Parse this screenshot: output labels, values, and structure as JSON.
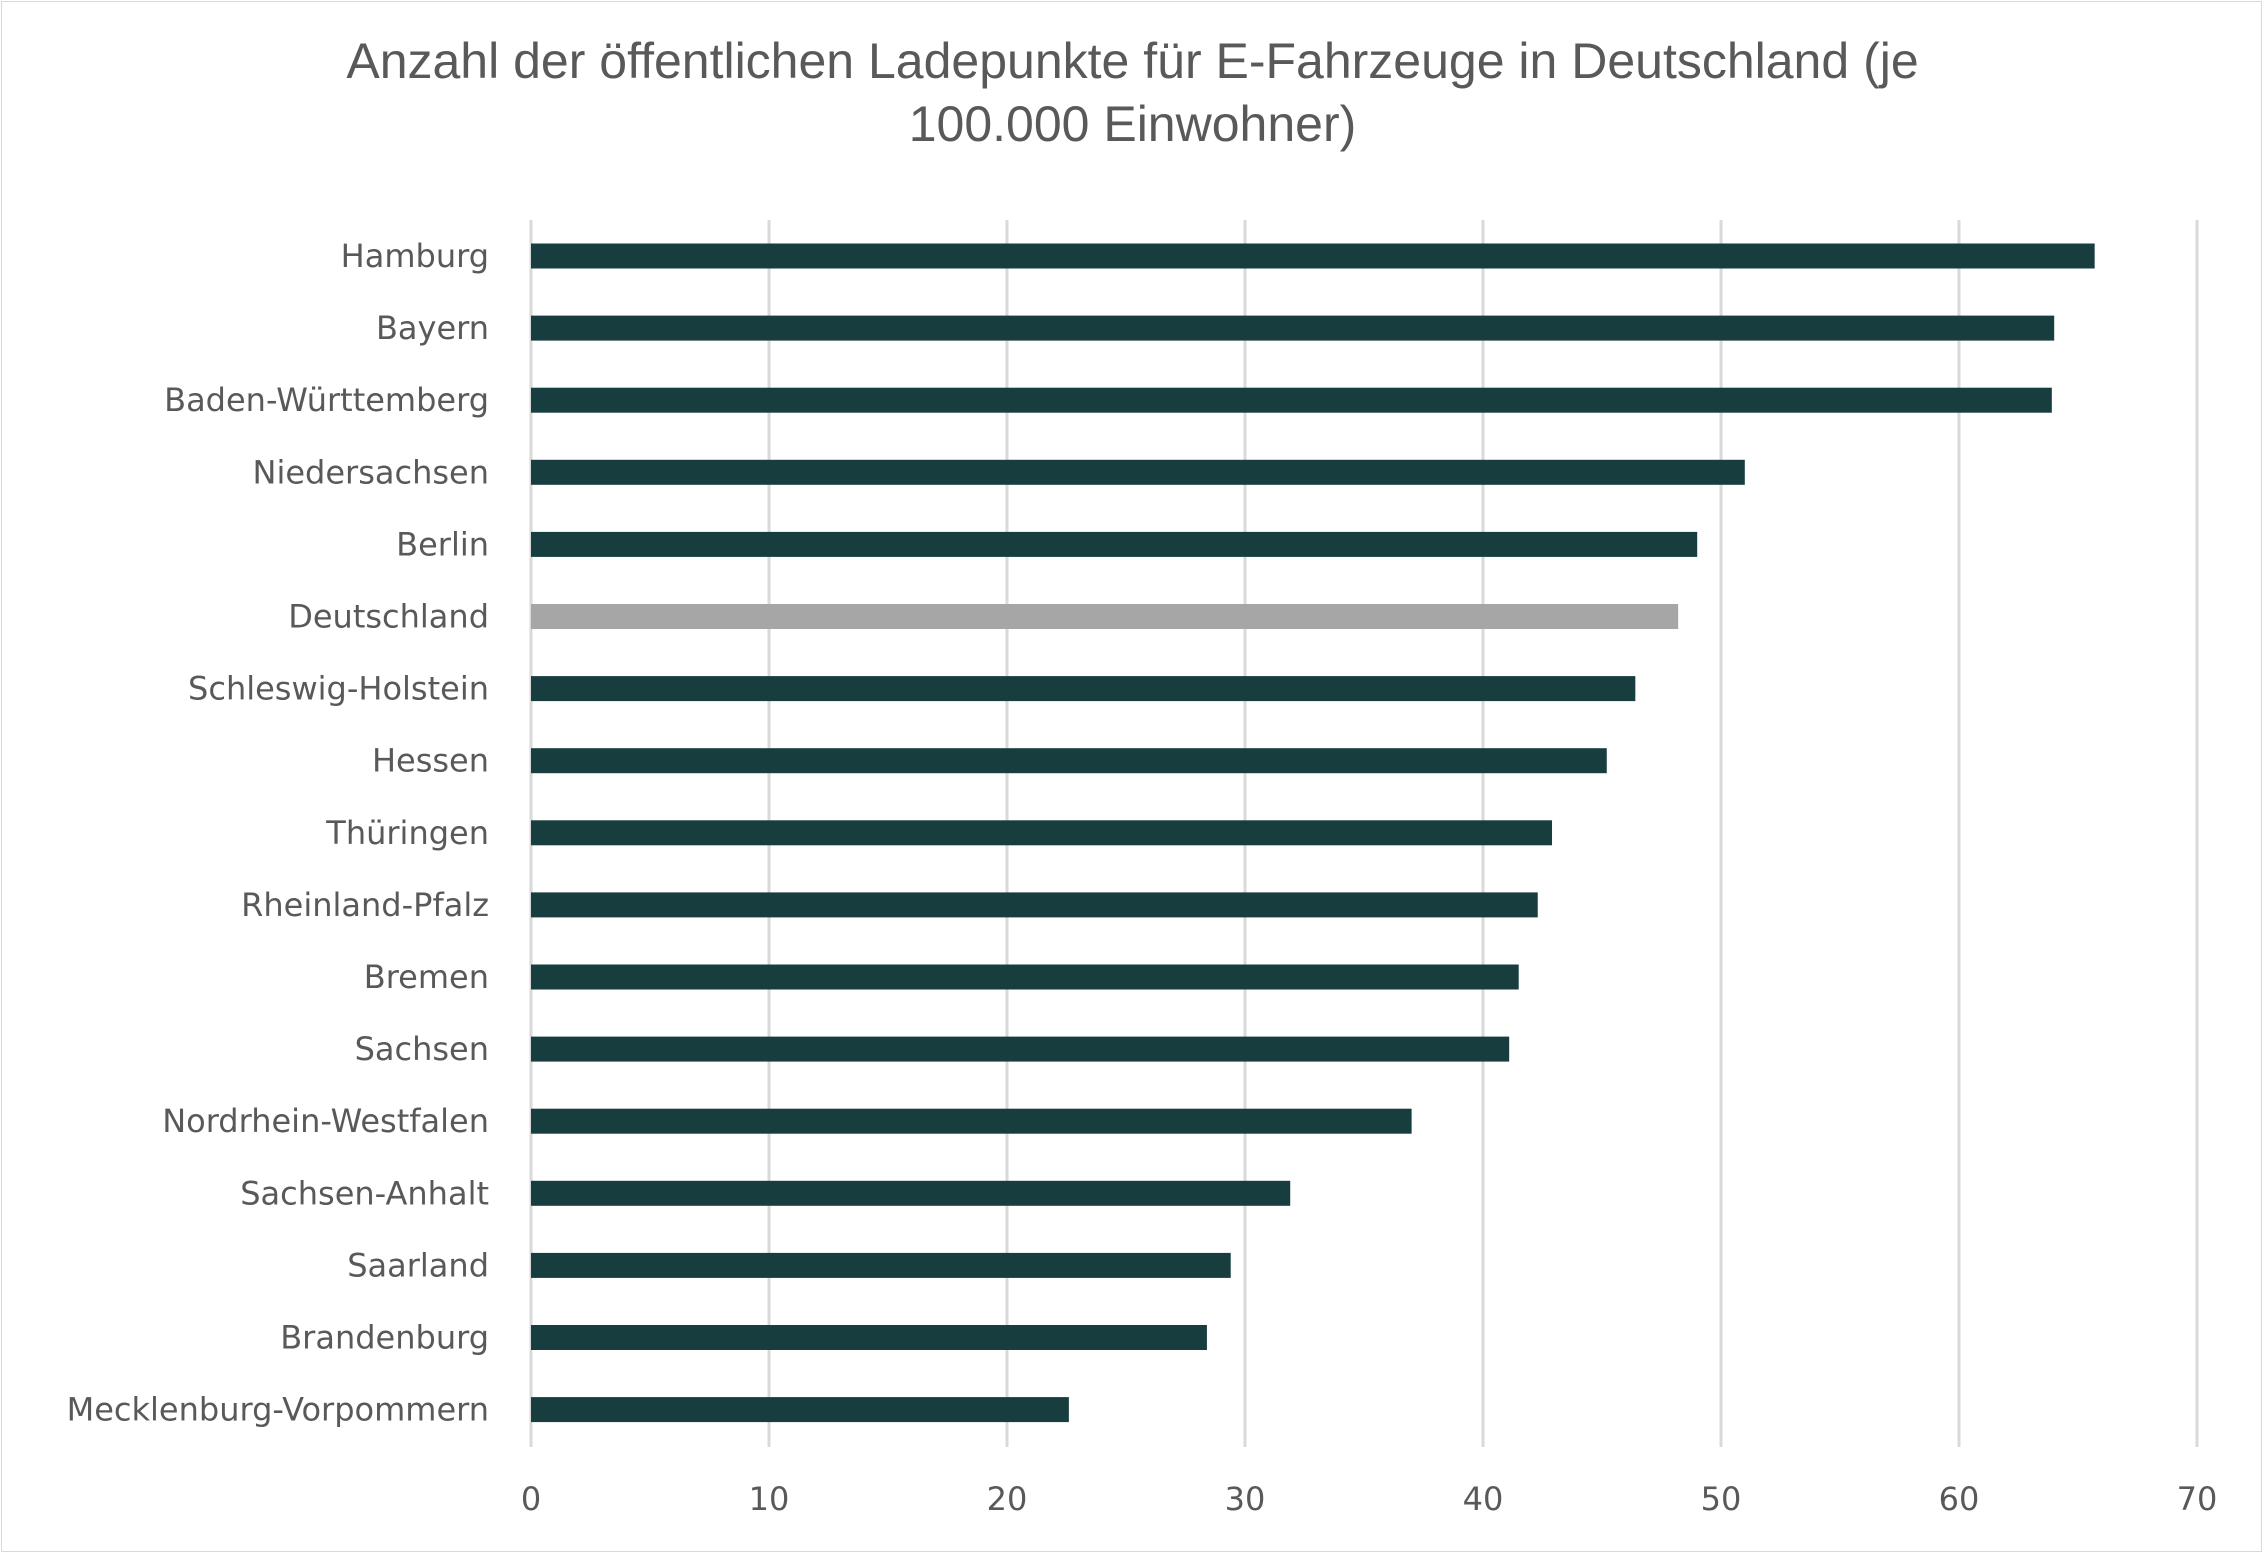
{
  "chart_data": {
    "type": "bar",
    "orientation": "horizontal",
    "title": "Anzahl der öffentlichen Ladepunkte für E-Fahrzeuge in Deutschland (je 100.000 Einwohner)",
    "title_lines": [
      "Anzahl der öffentlichen Ladepunkte für E-Fahrzeuge in Deutschland (je",
      "100.000 Einwohner)"
    ],
    "xlabel": "",
    "ylabel": "",
    "xlim": [
      0,
      70
    ],
    "xticks": [
      "0",
      "10",
      "20",
      "30",
      "40",
      "50",
      "60",
      "70"
    ],
    "grid": "vertical",
    "legend": "none",
    "categories": [
      "Hamburg",
      "Bayern",
      "Baden-Württemberg",
      "Niedersachsen",
      "Berlin",
      "Deutschland",
      "Schleswig-Holstein",
      "Hessen",
      "Thüringen",
      "Rheinland-Pfalz",
      "Bremen",
      "Sachsen",
      "Nordrhein-Westfalen",
      "Sachsen-Anhalt",
      "Saarland",
      "Brandenburg",
      "Mecklenburg-Vorpommern"
    ],
    "values": [
      65.7,
      64.0,
      63.9,
      51.0,
      49.0,
      48.2,
      46.4,
      45.2,
      42.9,
      42.3,
      41.5,
      41.1,
      37.0,
      31.9,
      29.4,
      28.4,
      22.6
    ],
    "colors": {
      "default": "#173d3f",
      "highlight": "#a6a6a6",
      "highlight_category": "Deutschland",
      "grid": "#d9d9d9",
      "text": "#595959"
    }
  }
}
